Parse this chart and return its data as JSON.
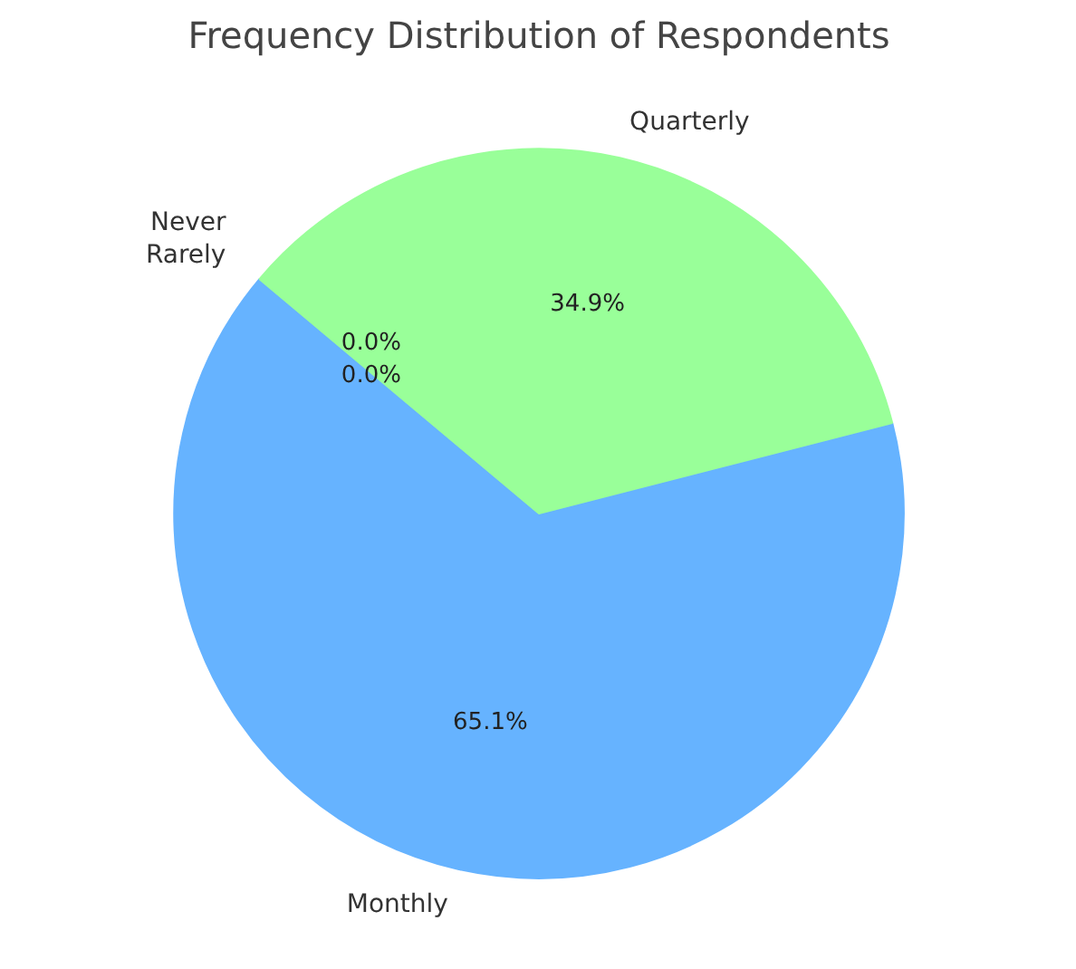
{
  "chart_data": {
    "type": "pie",
    "title": "Frequency Distribution of Respondents",
    "categories": [
      "Monthly",
      "Quarterly",
      "Rarely",
      "Never"
    ],
    "values": [
      65.1,
      34.9,
      0.0,
      0.0
    ],
    "colors": [
      "#66b3ff",
      "#99ff99",
      "#ffcc99",
      "#ff9999"
    ],
    "value_labels": [
      "65.1%",
      "34.9%",
      "0.0%",
      "0.0%"
    ],
    "legend": false
  }
}
